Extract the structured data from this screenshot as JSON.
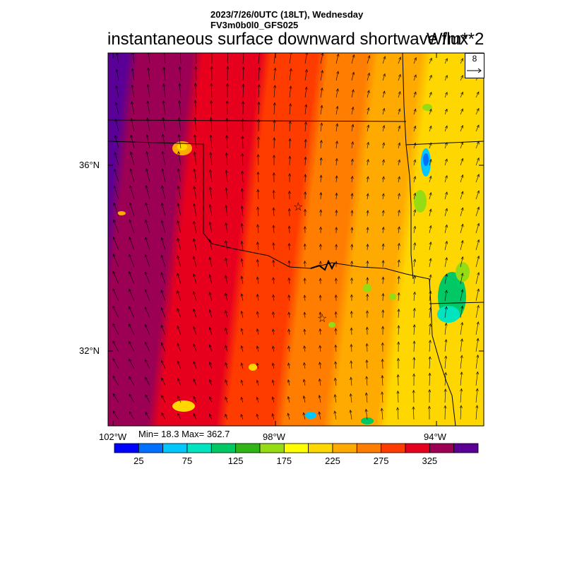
{
  "header": {
    "line1": "2023/7/26/0UTC (18LT), Wednesday",
    "line2": "FV3m0b0l0_GFS025",
    "title": "instantaneous surface downward shortwave flux",
    "units": "W/m**2"
  },
  "reference_vector": {
    "label": "8"
  },
  "stats": {
    "text": "Min= 18.3 Max= 362.7"
  },
  "axes": {
    "lat_labels": [
      "36°N",
      "32°N"
    ],
    "lon_labels": [
      "102°W",
      "98°W",
      "94°W"
    ]
  },
  "colorbar": {
    "colors": [
      "#0000ff",
      "#0070ff",
      "#00c8ff",
      "#00e4c0",
      "#00c864",
      "#30b418",
      "#96dc14",
      "#ffff00",
      "#ffd700",
      "#ffaa00",
      "#ff7d00",
      "#ff3c00",
      "#e6001e",
      "#9b0055",
      "#5a0096"
    ],
    "tick_labels": [
      "25",
      "75",
      "125",
      "175",
      "225",
      "275",
      "325"
    ]
  },
  "markers": [
    {
      "name": "Oklahoma City star",
      "symbol": "☆"
    },
    {
      "name": "Dallas star",
      "symbol": "☆"
    }
  ]
}
